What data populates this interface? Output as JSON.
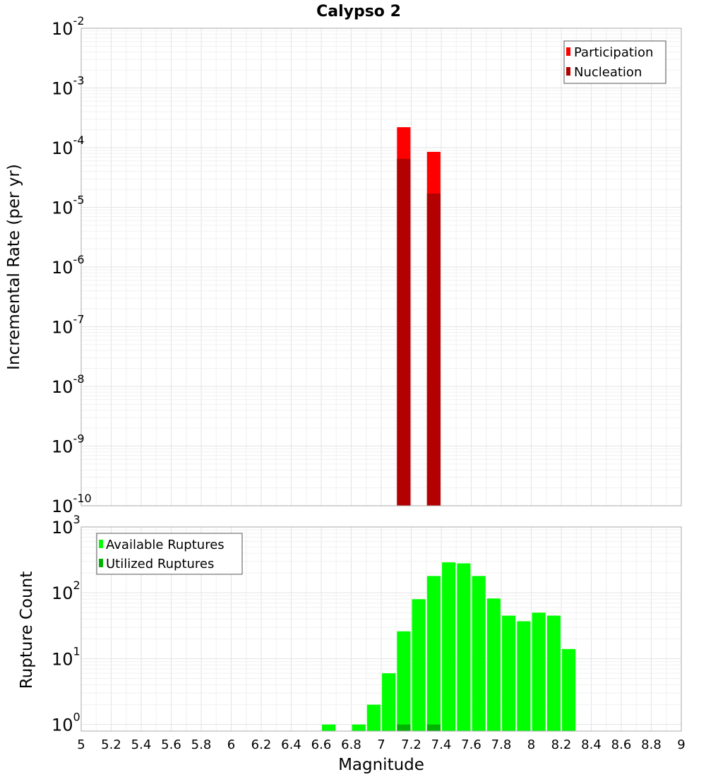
{
  "chart_data": [
    {
      "type": "bar",
      "title": "Calypso 2",
      "xlabel": "",
      "ylabel": "Incremental Rate (per yr)",
      "yscale": "log",
      "ylim_exp": [
        -10,
        -2
      ],
      "xlim": [
        5,
        9
      ],
      "grid": true,
      "legend_position": "top-right",
      "series": [
        {
          "name": "Participation",
          "color": "#ff0000",
          "x": [
            7.15,
            7.35
          ],
          "values": [
            0.00022,
            8.5e-05
          ]
        },
        {
          "name": "Nucleation",
          "color": "#b30000",
          "x": [
            7.15,
            7.35
          ],
          "values": [
            6.5e-05,
            1.7e-05
          ]
        }
      ]
    },
    {
      "type": "bar",
      "title": "",
      "xlabel": "Magnitude",
      "ylabel": "Rupture Count",
      "yscale": "log",
      "ylim_exp": [
        0,
        3
      ],
      "xlim": [
        5,
        9
      ],
      "grid": true,
      "legend_position": "top-left",
      "x_ticks": [
        "5",
        "5.2",
        "5.4",
        "5.6",
        "5.8",
        "6",
        "6.2",
        "6.4",
        "6.6",
        "6.8",
        "7",
        "7.2",
        "7.4",
        "7.6",
        "7.8",
        "8",
        "8.2",
        "8.4",
        "8.6",
        "8.8",
        "9"
      ],
      "series": [
        {
          "name": "Available Ruptures",
          "color": "#00ff00",
          "x": [
            6.65,
            6.85,
            6.95,
            7.05,
            7.15,
            7.25,
            7.35,
            7.45,
            7.55,
            7.65,
            7.75,
            7.85,
            7.95,
            8.05,
            8.15,
            8.25
          ],
          "values": [
            1,
            1,
            2,
            6,
            26,
            80,
            180,
            290,
            280,
            180,
            82,
            45,
            37,
            50,
            45,
            14
          ]
        },
        {
          "name": "Utilized Ruptures",
          "color": "#00b300",
          "x": [
            7.15,
            7.35
          ],
          "values": [
            1,
            1
          ]
        }
      ]
    }
  ]
}
